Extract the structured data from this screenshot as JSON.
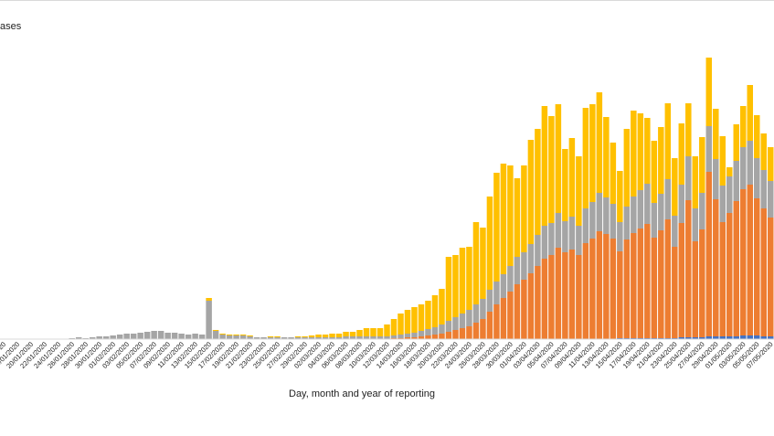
{
  "chart_data": {
    "type": "stacked-bar",
    "title": "ases",
    "x_label": "Day, month and year of reporting",
    "categories": [
      "16/01/2020",
      null,
      "18/01/2020",
      null,
      "20/01/2020",
      null,
      "22/01/2020",
      null,
      "24/01/2020",
      null,
      "26/01/2020",
      null,
      "28/01/2020",
      null,
      "30/01/2020",
      null,
      "01/02/2020",
      null,
      "03/02/2020",
      null,
      "05/02/2020",
      null,
      "07/02/2020",
      null,
      "09/02/2020",
      null,
      "11/02/2020",
      null,
      "13/02/2020",
      null,
      "15/02/2020",
      null,
      "17/02/2020",
      null,
      "19/02/2020",
      null,
      "21/02/2020",
      null,
      "23/02/2020",
      null,
      "25/02/2020",
      null,
      "27/02/2020",
      null,
      "29/02/2020",
      null,
      "02/03/2020",
      null,
      "04/03/2020",
      null,
      "06/03/2020",
      null,
      "08/03/2020",
      null,
      "10/03/2020",
      null,
      "12/03/2020",
      null,
      "14/03/2020",
      null,
      "16/03/2020",
      null,
      "18/03/2020",
      null,
      "20/03/2020",
      null,
      "22/03/2020",
      null,
      "24/03/2020",
      null,
      "26/03/2020",
      null,
      "28/03/2020",
      null,
      "30/03/2020",
      null,
      "01/04/2020",
      null,
      "03/04/2020",
      null,
      "05/04/2020",
      null,
      "07/04/2020",
      null,
      "09/04/2020",
      null,
      "11/04/2020",
      null,
      "13/04/2020",
      null,
      "15/04/2020",
      null,
      "17/04/2020",
      null,
      "19/04/2020",
      null,
      "21/04/2020",
      null,
      "23/04/2020",
      null,
      "25/04/2020",
      null,
      "27/04/2020",
      null,
      "29/04/2020",
      null,
      "01/05/2020",
      null,
      "03/05/2020",
      null,
      "05/05/2020",
      null,
      "07/05/2020"
    ],
    "series": [
      {
        "color": "#4472c4",
        "values": [
          0,
          0,
          0,
          0,
          0,
          0,
          0,
          0,
          0,
          0,
          0,
          0,
          0,
          0,
          0,
          0,
          0,
          0,
          0,
          0,
          0,
          0,
          0,
          0,
          0,
          0,
          0,
          0,
          0,
          0,
          0,
          0,
          0,
          0,
          0,
          0,
          0,
          0,
          0,
          0,
          0,
          0,
          0,
          0,
          0,
          0,
          0,
          0,
          0,
          0,
          0,
          0,
          0,
          0,
          0,
          0,
          0,
          0,
          0,
          0,
          0,
          0,
          0,
          0,
          0,
          0,
          0,
          0,
          0,
          0,
          0,
          0,
          0,
          0,
          0,
          0,
          0,
          0,
          0,
          0,
          0,
          0,
          0,
          0,
          0,
          0,
          0,
          0,
          0,
          0,
          1,
          1,
          1,
          1,
          1,
          1,
          1,
          1,
          1,
          2,
          2,
          2,
          2,
          3,
          3,
          3,
          3,
          3,
          4,
          4,
          4,
          3,
          3
        ]
      },
      {
        "color": "#ed7d31",
        "values": [
          0,
          0,
          0,
          0,
          0,
          0,
          0,
          0,
          0,
          0,
          0,
          0,
          0,
          0,
          0,
          0,
          0,
          0,
          0,
          0,
          0,
          0,
          0,
          0,
          0,
          0,
          0,
          0,
          0,
          0,
          0,
          0,
          0,
          0,
          0,
          0,
          0,
          0,
          0,
          0,
          0,
          0,
          0,
          0,
          0,
          0,
          0,
          0,
          0,
          0,
          0,
          0,
          0,
          0,
          0,
          0,
          0,
          1,
          1,
          2,
          2,
          3,
          4,
          5,
          6,
          8,
          10,
          12,
          14,
          18,
          22,
          30,
          38,
          45,
          52,
          60,
          65,
          72,
          80,
          88,
          92,
          100,
          95,
          98,
          92,
          105,
          110,
          118,
          115,
          110,
          95,
          108,
          115,
          120,
          125,
          110,
          118,
          130,
          100,
          125,
          150,
          105,
          118,
          180,
          150,
          125,
          135,
          148,
          160,
          165,
          150,
          140,
          130
        ]
      },
      {
        "color": "#a5a5a5",
        "values": [
          0,
          0,
          0,
          0,
          0,
          0,
          0,
          0,
          0,
          0,
          1,
          2,
          1,
          2,
          3,
          3,
          4,
          5,
          6,
          6,
          7,
          8,
          9,
          9,
          7,
          7,
          6,
          5,
          6,
          5,
          42,
          9,
          5,
          4,
          4,
          4,
          3,
          2,
          2,
          2,
          2,
          2,
          2,
          2,
          2,
          2,
          2,
          2,
          2,
          2,
          3,
          3,
          3,
          3,
          3,
          3,
          3,
          3,
          4,
          4,
          5,
          6,
          7,
          8,
          10,
          12,
          14,
          16,
          18,
          20,
          22,
          24,
          25,
          26,
          28,
          30,
          30,
          32,
          34,
          36,
          35,
          38,
          34,
          36,
          32,
          38,
          40,
          42,
          40,
          38,
          32,
          36,
          40,
          42,
          44,
          38,
          40,
          44,
          34,
          42,
          48,
          36,
          40,
          50,
          44,
          40,
          40,
          44,
          46,
          48,
          44,
          42,
          40
        ]
      },
      {
        "color": "#ffc000",
        "values": [
          0,
          0,
          0,
          0,
          0,
          0,
          0,
          0,
          0,
          0,
          0,
          0,
          0,
          0,
          0,
          0,
          0,
          0,
          0,
          0,
          0,
          0,
          0,
          0,
          0,
          0,
          0,
          0,
          0,
          0,
          3,
          1,
          1,
          1,
          1,
          1,
          1,
          0,
          0,
          1,
          1,
          0,
          0,
          1,
          1,
          2,
          3,
          3,
          4,
          4,
          5,
          5,
          7,
          9,
          9,
          9,
          13,
          18,
          23,
          26,
          28,
          29,
          31,
          35,
          39,
          70,
          68,
          72,
          69,
          90,
          78,
          102,
          119,
          121,
          110,
          86,
          95,
          114,
          116,
          131,
          117,
          119,
          79,
          86,
          76,
          110,
          107,
          110,
          88,
          67,
          56,
          85,
          94,
          84,
          72,
          68,
          73,
          83,
          63,
          67,
          58,
          57,
          61,
          75,
          55,
          54,
          10,
          40,
          45,
          61,
          47,
          40,
          37
        ]
      }
    ]
  }
}
